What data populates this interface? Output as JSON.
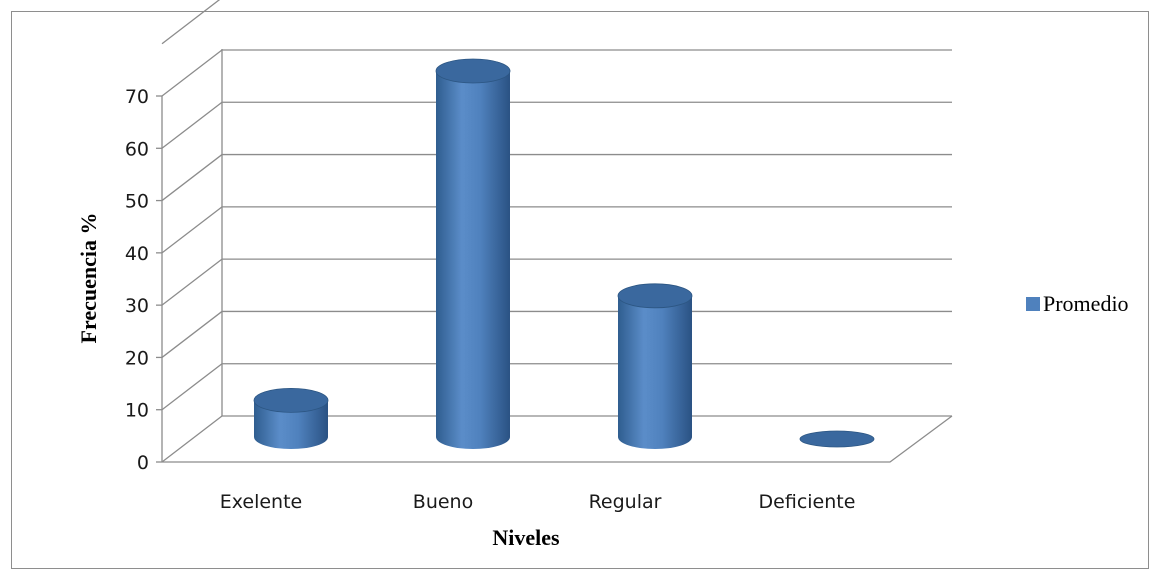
{
  "chart_data": {
    "type": "bar",
    "style": "3d-cylinder",
    "categories": [
      "Exelente",
      "Bueno",
      "Regular",
      "Deficiente"
    ],
    "series": [
      {
        "name": "Promedio",
        "values": [
          7,
          70,
          27,
          0
        ]
      }
    ],
    "xlabel": "Niveles",
    "ylabel": "Frecuencia %",
    "ylim": [
      0,
      70
    ],
    "yticks": [
      0,
      10,
      20,
      30,
      40,
      50,
      60,
      70
    ],
    "grid": true,
    "legend": "right",
    "colors": {
      "bar": "#4f81bd",
      "bar_dark": "#2c5683",
      "bar_top": "#3a689e",
      "grid": "#8c8c8c"
    }
  }
}
